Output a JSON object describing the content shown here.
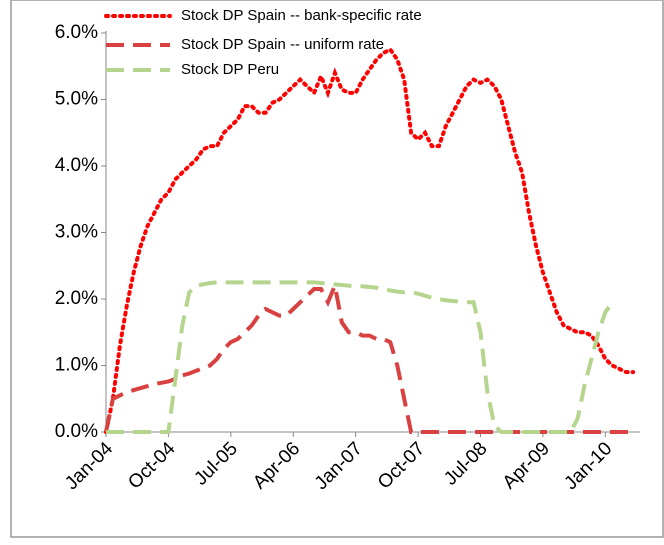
{
  "chart_data": {
    "type": "line",
    "categories": [
      "Jan-04",
      null,
      null,
      null,
      null,
      null,
      null,
      null,
      null,
      "Oct-04",
      null,
      null,
      null,
      null,
      null,
      null,
      null,
      null,
      "Jul-05",
      null,
      null,
      null,
      null,
      null,
      null,
      null,
      null,
      "Apr-06",
      null,
      null,
      null,
      null,
      null,
      null,
      null,
      null,
      "Jan-07",
      null,
      null,
      null,
      null,
      null,
      null,
      null,
      null,
      "Oct-07",
      null,
      null,
      null,
      null,
      null,
      null,
      null,
      null,
      "Jul-08",
      null,
      null,
      null,
      null,
      null,
      null,
      null,
      null,
      "Apr-09",
      null,
      null,
      null,
      null,
      null,
      null,
      null,
      null,
      "Jan-10",
      null,
      null,
      null,
      null,
      null
    ],
    "series": [
      {
        "name": "Stock DP Spain -- bank-specific rate",
        "color": "#ff0000",
        "dash": "dotted",
        "values": [
          0,
          0.5,
          1.3,
          1.9,
          2.4,
          2.8,
          3.1,
          3.3,
          3.5,
          3.6,
          3.8,
          3.9,
          4.0,
          4.1,
          4.25,
          4.3,
          4.3,
          4.5,
          4.6,
          4.7,
          4.9,
          4.9,
          4.8,
          4.8,
          4.95,
          5.0,
          5.1,
          5.2,
          5.3,
          5.2,
          5.1,
          5.35,
          5.1,
          5.4,
          5.15,
          5.1,
          5.1,
          5.3,
          5.45,
          5.6,
          5.7,
          5.75,
          5.6,
          5.3,
          4.5,
          4.4,
          4.5,
          4.3,
          4.3,
          4.6,
          4.8,
          5.0,
          5.2,
          5.3,
          5.25,
          5.3,
          5.2,
          5.0,
          4.6,
          4.2,
          3.9,
          3.3,
          2.8,
          2.4,
          2.1,
          1.8,
          1.6,
          1.55,
          1.5,
          1.5,
          1.45,
          1.3,
          1.1,
          1.0,
          0.95,
          0.9,
          0.9,
          null
        ]
      },
      {
        "name": "Stock DP Spain -- uniform rate",
        "color": "#d94141",
        "dash": "dashed",
        "values": [
          0,
          0.5,
          0.55,
          0.6,
          0.63,
          0.66,
          0.69,
          0.72,
          0.74,
          0.76,
          0.8,
          0.85,
          0.88,
          0.92,
          0.96,
          1.0,
          1.1,
          1.25,
          1.35,
          1.4,
          1.5,
          1.6,
          1.75,
          1.85,
          1.8,
          1.75,
          1.75,
          1.85,
          1.95,
          2.05,
          2.15,
          2.15,
          1.95,
          2.2,
          1.65,
          1.5,
          1.5,
          1.45,
          1.45,
          1.4,
          1.4,
          1.35,
          1.0,
          0.5,
          0,
          0,
          0,
          0,
          0,
          0,
          0,
          0,
          0,
          0,
          0,
          0,
          0,
          0,
          0,
          0,
          0,
          0,
          0,
          0,
          0,
          0,
          0,
          0,
          0,
          0,
          0,
          0,
          0,
          0,
          0,
          0,
          0,
          null
        ]
      },
      {
        "name": "Stock DP Peru",
        "color": "#b5d58e",
        "dash": "dashed",
        "values": [
          0,
          0,
          0,
          0,
          0,
          0,
          0,
          0,
          0,
          0,
          0.8,
          1.6,
          2.1,
          2.2,
          2.22,
          2.24,
          2.25,
          2.25,
          2.25,
          2.25,
          2.25,
          2.25,
          2.25,
          2.25,
          2.25,
          2.25,
          2.25,
          2.25,
          2.25,
          2.25,
          2.25,
          2.24,
          2.23,
          2.22,
          2.21,
          2.2,
          2.2,
          2.19,
          2.18,
          2.17,
          2.15,
          2.13,
          2.11,
          2.1,
          2.1,
          2.08,
          2.05,
          2.02,
          2.0,
          1.98,
          1.97,
          1.96,
          1.95,
          1.95,
          1.5,
          0.6,
          0.1,
          0,
          0,
          0,
          0,
          0,
          0,
          0,
          0,
          0,
          0,
          0,
          0.2,
          0.7,
          1.1,
          1.5,
          1.8,
          1.95,
          null,
          null,
          null,
          null
        ]
      }
    ],
    "ylim": [
      0,
      6
    ],
    "yticks": [
      {
        "value": 0,
        "label": "0.0%"
      },
      {
        "value": 1,
        "label": "1.0%"
      },
      {
        "value": 2,
        "label": "2.0%"
      },
      {
        "value": 3,
        "label": "3.0%"
      },
      {
        "value": 4,
        "label": "4.0%"
      },
      {
        "value": 5,
        "label": "5.0%"
      },
      {
        "value": 6,
        "label": "6.0%"
      }
    ],
    "legend": "top"
  }
}
